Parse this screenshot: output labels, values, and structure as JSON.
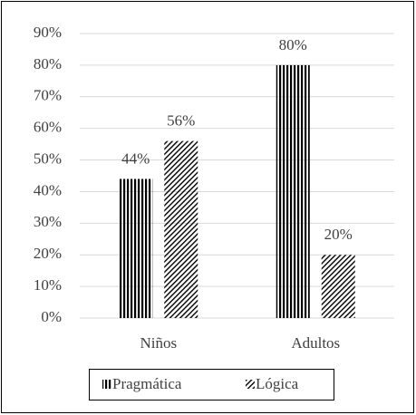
{
  "chart_data": {
    "type": "bar",
    "categories": [
      "Niños",
      "Adultos"
    ],
    "series": [
      {
        "name": "Pragmática",
        "color": "#000000",
        "pattern": "vertical",
        "values": [
          44,
          80
        ],
        "value_labels": [
          "44%",
          "80%"
        ]
      },
      {
        "name": "Lógica",
        "color": "#000000",
        "pattern": "diagonal",
        "values": [
          56,
          20
        ],
        "value_labels": [
          "56%",
          "20%"
        ]
      }
    ],
    "ylim": [
      0,
      90
    ],
    "yticks": [
      {
        "value": 0,
        "label": "0%"
      },
      {
        "value": 10,
        "label": "10%"
      },
      {
        "value": 20,
        "label": "20%"
      },
      {
        "value": 30,
        "label": "30%"
      },
      {
        "value": 40,
        "label": "40%"
      },
      {
        "value": 50,
        "label": "50%"
      },
      {
        "value": 60,
        "label": "60%"
      },
      {
        "value": 70,
        "label": "70%"
      },
      {
        "value": 80,
        "label": "80%"
      },
      {
        "value": 90,
        "label": "90%"
      }
    ],
    "grid": true,
    "legend": "bottom"
  }
}
